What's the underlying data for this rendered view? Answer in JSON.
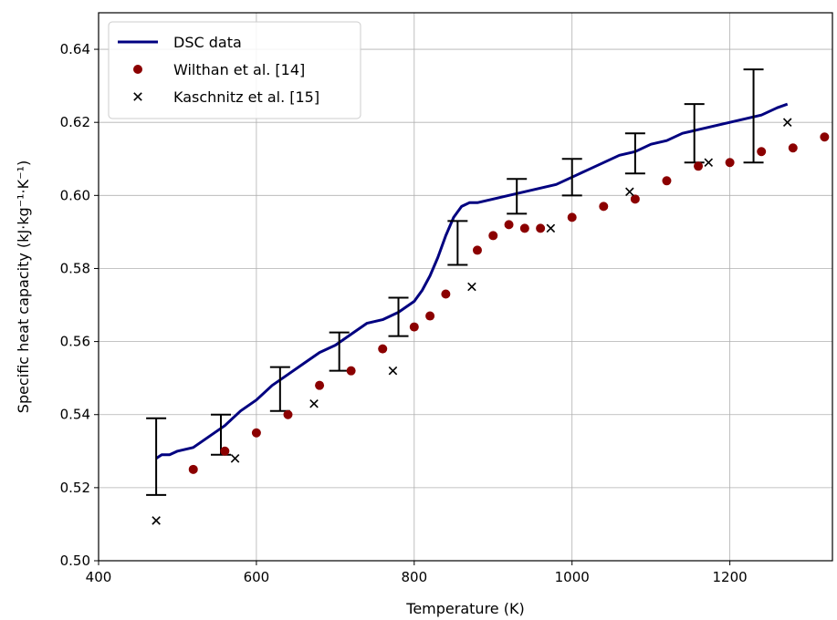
{
  "chart_data": {
    "type": "line",
    "xlabel": "Temperature (K)",
    "ylabel": "Specific heat capacity (kJ·kg⁻¹·K⁻¹)",
    "xlim": [
      400,
      1330
    ],
    "ylim": [
      0.5,
      0.65
    ],
    "xticks": [
      400,
      600,
      800,
      1000,
      1200
    ],
    "yticks": [
      0.5,
      0.52,
      0.54,
      0.56,
      0.58,
      0.6,
      0.62,
      0.64
    ],
    "xtick_labels": [
      "400",
      "600",
      "800",
      "1000",
      "1200"
    ],
    "ytick_labels": [
      "0.50",
      "0.52",
      "0.54",
      "0.56",
      "0.58",
      "0.60",
      "0.62",
      "0.64"
    ],
    "grid": true,
    "legend_position": "top-left",
    "series": [
      {
        "name": "DSC data",
        "style": "line",
        "color": "#000080",
        "x": [
          473,
          480,
          490,
          500,
          520,
          540,
          560,
          580,
          600,
          620,
          640,
          660,
          680,
          700,
          720,
          740,
          760,
          780,
          800,
          810,
          820,
          830,
          840,
          850,
          860,
          870,
          880,
          900,
          920,
          940,
          960,
          980,
          1000,
          1020,
          1040,
          1060,
          1080,
          1100,
          1120,
          1140,
          1160,
          1180,
          1200,
          1220,
          1240,
          1260,
          1273
        ],
        "y": [
          0.528,
          0.529,
          0.529,
          0.53,
          0.531,
          0.534,
          0.537,
          0.541,
          0.544,
          0.548,
          0.551,
          0.554,
          0.557,
          0.559,
          0.562,
          0.565,
          0.566,
          0.568,
          0.571,
          0.574,
          0.578,
          0.583,
          0.589,
          0.594,
          0.597,
          0.598,
          0.598,
          0.599,
          0.6,
          0.601,
          0.602,
          0.603,
          0.605,
          0.607,
          0.609,
          0.611,
          0.612,
          0.614,
          0.615,
          0.617,
          0.618,
          0.619,
          0.62,
          0.621,
          0.622,
          0.624,
          0.625
        ]
      },
      {
        "name": "Wilthan et al. [14]",
        "style": "marker-circle",
        "color": "#8b0000",
        "x": [
          520,
          560,
          600,
          640,
          680,
          720,
          760,
          800,
          820,
          840,
          880,
          900,
          920,
          940,
          960,
          1000,
          1040,
          1080,
          1120,
          1160,
          1200,
          1240,
          1280,
          1320
        ],
        "y": [
          0.525,
          0.53,
          0.535,
          0.54,
          0.548,
          0.552,
          0.558,
          0.564,
          0.567,
          0.573,
          0.585,
          0.589,
          0.592,
          0.591,
          0.591,
          0.594,
          0.597,
          0.599,
          0.604,
          0.608,
          0.609,
          0.612,
          0.613,
          0.616
        ]
      },
      {
        "name": "Kaschnitz et al. [15]",
        "style": "marker-x",
        "color": "#000000",
        "x": [
          473,
          573,
          673,
          773,
          873,
          973,
          1073,
          1173,
          1273
        ],
        "y": [
          0.511,
          0.528,
          0.543,
          0.552,
          0.575,
          0.591,
          0.601,
          0.609,
          0.62
        ]
      }
    ],
    "error_bars": [
      {
        "x": 473,
        "low": 0.518,
        "high": 0.539
      },
      {
        "x": 555,
        "low": 0.529,
        "high": 0.54
      },
      {
        "x": 630,
        "low": 0.541,
        "high": 0.553
      },
      {
        "x": 705,
        "low": 0.552,
        "high": 0.5625
      },
      {
        "x": 780,
        "low": 0.5615,
        "high": 0.572
      },
      {
        "x": 855,
        "low": 0.581,
        "high": 0.593
      },
      {
        "x": 930,
        "low": 0.595,
        "high": 0.6045
      },
      {
        "x": 1000,
        "low": 0.6,
        "high": 0.61
      },
      {
        "x": 1080,
        "low": 0.606,
        "high": 0.617
      },
      {
        "x": 1155,
        "low": 0.609,
        "high": 0.625
      },
      {
        "x": 1230,
        "low": 0.609,
        "high": 0.6345
      }
    ]
  }
}
